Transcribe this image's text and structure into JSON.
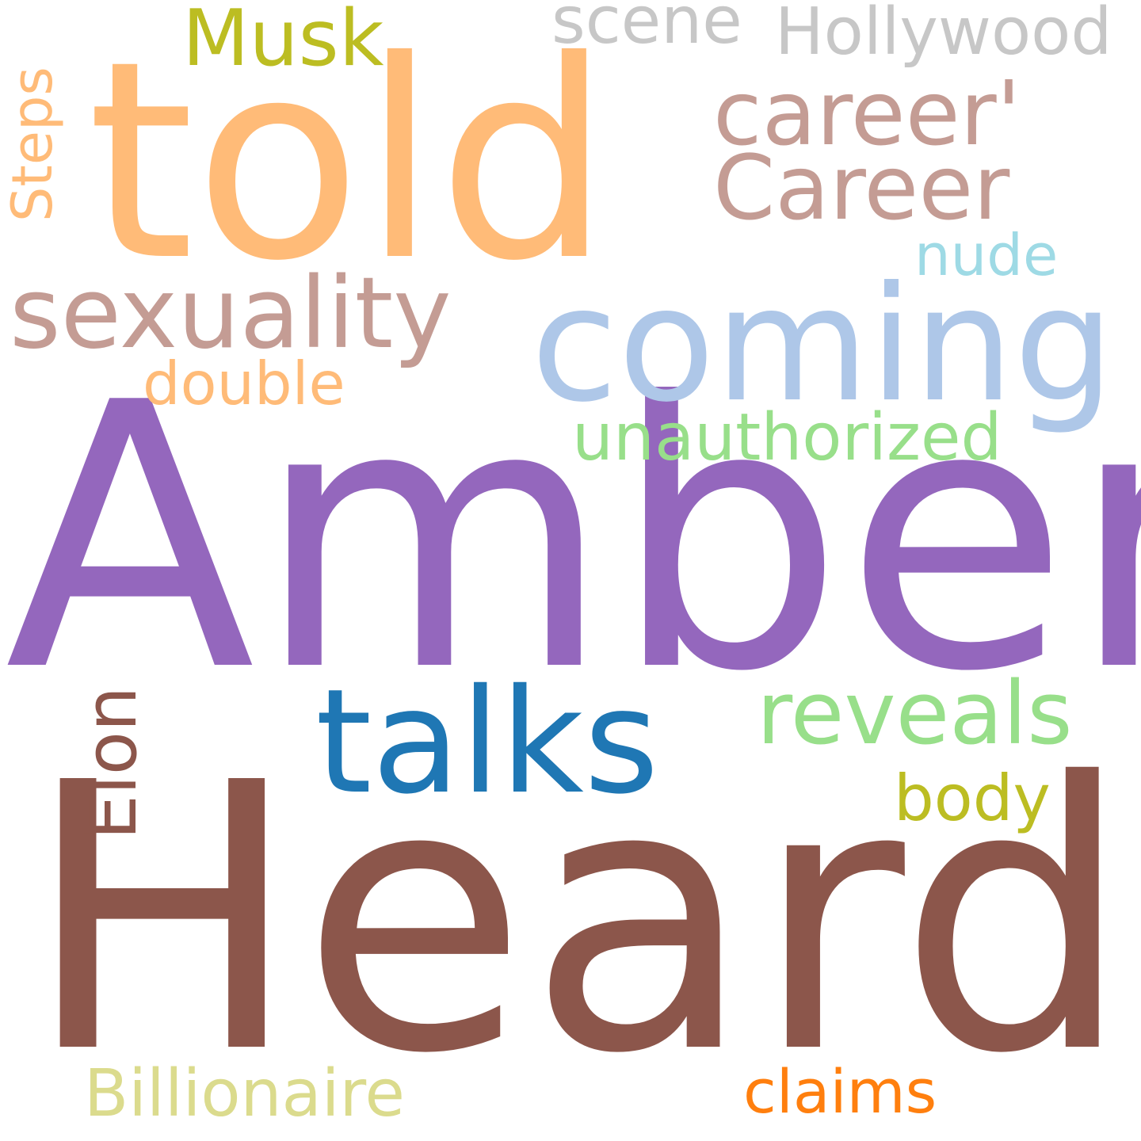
{
  "words": {
    "amber": {
      "text": "Amber",
      "color": "#9467bd"
    },
    "heard": {
      "text": "Heard",
      "color": "#8c564b"
    },
    "told": {
      "text": "told",
      "color": "#ffbb78"
    },
    "coming": {
      "text": "coming",
      "color": "#aec7e8"
    },
    "talks": {
      "text": "talks",
      "color": "#1f77b4"
    },
    "sexuality": {
      "text": "sexuality",
      "color": "#c49c94"
    },
    "career_apos": {
      "text": "career'",
      "color": "#c49c94"
    },
    "career_cap": {
      "text": "Career",
      "color": "#c49c94"
    },
    "reveals": {
      "text": "reveals",
      "color": "#98df8a"
    },
    "unauthorized": {
      "text": "unauthorized",
      "color": "#98df8a"
    },
    "musk": {
      "text": "Musk",
      "color": "#bcbd22"
    },
    "hollywood": {
      "text": "Hollywood",
      "color": "#c7c7c7"
    },
    "scene": {
      "text": "scene",
      "color": "#c7c7c7"
    },
    "nude": {
      "text": "nude",
      "color": "#9edae5"
    },
    "double": {
      "text": "double",
      "color": "#ffbb78"
    },
    "steps": {
      "text": "Steps",
      "color": "#ffbb78"
    },
    "elon": {
      "text": "Elon",
      "color": "#8c564b"
    },
    "body": {
      "text": "body",
      "color": "#bcbd22"
    },
    "billionaire": {
      "text": "Billionaire",
      "color": "#dbdb8d"
    },
    "claims": {
      "text": "claims",
      "color": "#ff7f0e"
    }
  }
}
